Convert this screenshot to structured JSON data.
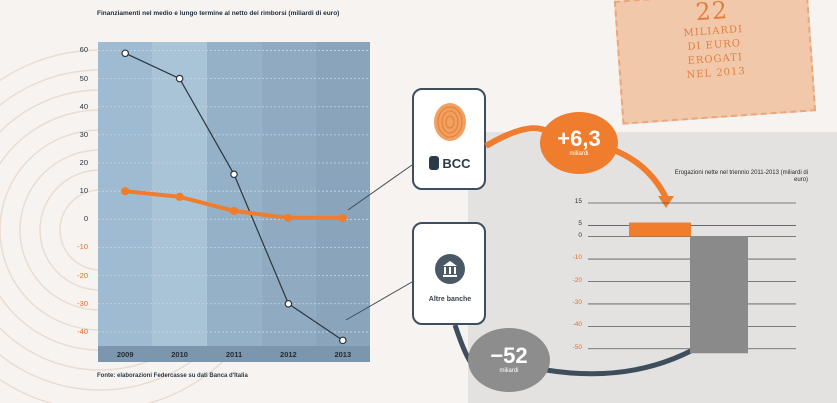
{
  "stamp": {
    "big": "22",
    "lines": [
      "MILIARDI",
      "DI EURO",
      "EROGATI",
      "NEL 2013"
    ],
    "color": "#e27f3e"
  },
  "boxes": {
    "bcc_label": "BCC",
    "altre_label": "Altre banche",
    "fingerprint_icon": "fingerprint-icon",
    "bank_icon": "bank-icon"
  },
  "bubbles": {
    "bcc_value": "+6,3",
    "bcc_unit": "miliardi",
    "altre_value": "−52",
    "altre_unit": "miliardi",
    "bcc_color": "#ef7d2d",
    "altre_color": "#8d8d8d"
  },
  "chart_data": [
    {
      "type": "line",
      "title": "Finanziamenti nel medio e lungo termine al netto dei rimborsi (miliardi di euro)",
      "source": "Fonte: elaborazioni Federcasse su dati Banca d'Italia",
      "categories": [
        "2009",
        "2010",
        "2011",
        "2012",
        "2013"
      ],
      "series": [
        {
          "name": "Altre banche",
          "values": [
            59,
            50,
            16,
            -30,
            -43
          ],
          "color": "#2c3640"
        },
        {
          "name": "BCC",
          "values": [
            10,
            8,
            3,
            0.5,
            0.5
          ],
          "color": "#ef7d2d"
        }
      ],
      "yticks": [
        "60",
        "50",
        "40",
        "30",
        "20",
        "10",
        "0",
        "-10",
        "-20",
        "-30",
        "-40"
      ],
      "ylim": [
        -45,
        63
      ],
      "grid": true,
      "xlabel": "",
      "ylabel": ""
    },
    {
      "type": "bar",
      "title": "Erogazioni nette nel triennio 2011-2013 (miliardi di euro)",
      "categories": [
        "BCC",
        "Altre banche"
      ],
      "values": [
        6.3,
        -52
      ],
      "colors": [
        "#ef7d2d",
        "#8a8a8a"
      ],
      "yticks": [
        "15",
        "5",
        "0",
        "-10",
        "-20",
        "-30",
        "-40",
        "-50"
      ],
      "ylim": [
        -55,
        15
      ],
      "grid": true
    }
  ]
}
